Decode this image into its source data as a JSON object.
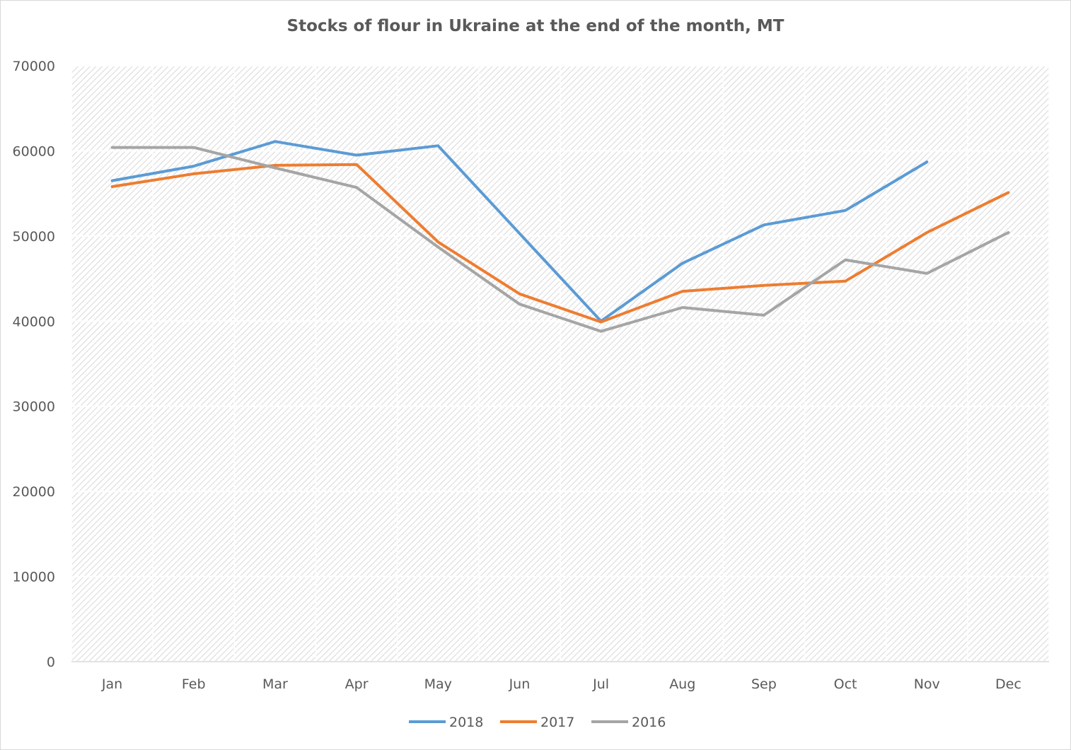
{
  "chart_data": {
    "type": "line",
    "title": "Stocks of flour in Ukraine at the end of the month, MT",
    "xlabel": "",
    "ylabel": "",
    "categories": [
      "Jan",
      "Feb",
      "Mar",
      "Apr",
      "May",
      "Jun",
      "Jul",
      "Aug",
      "Sep",
      "Oct",
      "Nov",
      "Dec"
    ],
    "ylim": [
      0,
      70000
    ],
    "yticks": [
      0,
      10000,
      20000,
      30000,
      40000,
      50000,
      60000,
      70000
    ],
    "grid": true,
    "legend_position": "bottom",
    "series": [
      {
        "name": "2018",
        "color": "#5b9bd5",
        "values": [
          56500,
          58200,
          61100,
          59500,
          60600,
          50300,
          40000,
          46800,
          51300,
          53000,
          58700,
          null
        ]
      },
      {
        "name": "2017",
        "color": "#ed7d31",
        "values": [
          55800,
          57300,
          58300,
          58400,
          49300,
          43200,
          39900,
          43500,
          44200,
          44700,
          50400,
          55100
        ]
      },
      {
        "name": "2016",
        "color": "#a5a5a5",
        "values": [
          60400,
          60400,
          58000,
          55700,
          48700,
          42000,
          38800,
          41600,
          40700,
          47200,
          45600,
          50400
        ]
      }
    ]
  }
}
